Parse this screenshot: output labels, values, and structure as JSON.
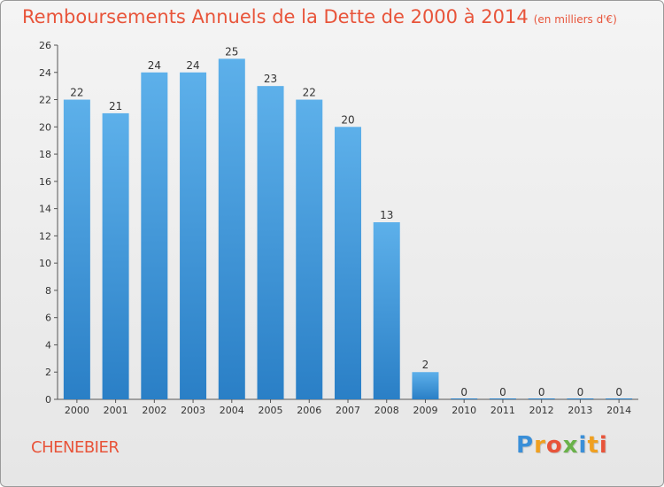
{
  "chart_data": {
    "type": "bar",
    "title": "Remboursements Annuels de la Dette de 2000 à 2014",
    "subtitle": "(en milliers d'€)",
    "categories": [
      "2000",
      "2001",
      "2002",
      "2003",
      "2004",
      "2005",
      "2006",
      "2007",
      "2008",
      "2009",
      "2010",
      "2011",
      "2012",
      "2013",
      "2014"
    ],
    "values": [
      22,
      21,
      24,
      24,
      25,
      23,
      22,
      20,
      13,
      2,
      0,
      0,
      0,
      0,
      0
    ],
    "xlabel": "",
    "ylabel": "",
    "ylim": [
      0,
      26
    ],
    "yticks": [
      0,
      2,
      4,
      6,
      8,
      10,
      12,
      14,
      16,
      18,
      20,
      22,
      24,
      26
    ],
    "grid": false
  },
  "commune": "CHENEBIER",
  "brand": {
    "text": "Proxiti",
    "letters": [
      {
        "char": "P",
        "color": "#3a8fd8"
      },
      {
        "char": "r",
        "color": "#f0a020"
      },
      {
        "char": "o",
        "color": "#e8543a"
      },
      {
        "char": "x",
        "color": "#6ab24a"
      },
      {
        "char": "i",
        "color": "#3a8fd8"
      },
      {
        "char": "t",
        "color": "#f0a020"
      },
      {
        "char": "i",
        "color": "#e8543a"
      }
    ]
  },
  "colors": {
    "title": "#e8543a",
    "bar_top": "#5db0ea",
    "bar_bottom": "#2a7fc6",
    "axis": "#555555",
    "text": "#333333"
  }
}
